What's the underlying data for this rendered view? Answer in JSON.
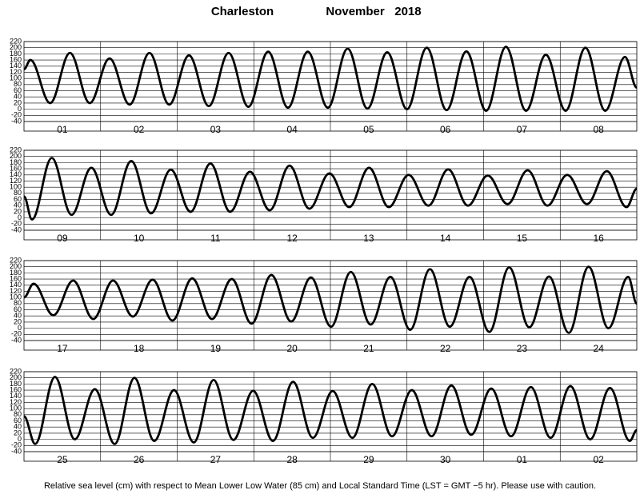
{
  "title": {
    "place": "Charleston",
    "month": "November   2018"
  },
  "footnote": "Relative sea level (cm) with respect to Mean Lower Low Water (85 cm) and Local Standard Time (LST = GMT −5 hr). Please use with caution.",
  "chart_data": [
    {
      "type": "line",
      "categories": [
        "01",
        "02",
        "03",
        "04",
        "05",
        "06",
        "07",
        "08"
      ],
      "xlim": [
        0,
        192
      ],
      "ylim": [
        -40,
        220
      ],
      "yticks": [
        -40,
        -20,
        0,
        20,
        40,
        60,
        80,
        100,
        120,
        140,
        160,
        180,
        200,
        220
      ],
      "grid": true,
      "x": [
        0,
        2.0,
        8.2,
        14.4,
        20.6,
        26.8,
        33.1,
        39.3,
        45.5,
        51.7,
        57.9,
        64.1,
        70.3,
        76.5,
        82.7,
        88.9,
        95.2,
        101.4,
        107.6,
        113.8,
        120.0,
        126.2,
        132.4,
        138.6,
        144.8,
        151.0,
        157.3,
        163.5,
        169.7,
        175.9,
        182.1,
        188.3,
        192
      ],
      "series": [
        {
          "color": "#000000",
          "values": [
            130,
            160,
            20,
            183,
            20,
            165,
            15,
            183,
            15,
            175,
            10,
            183,
            8,
            187,
            5,
            187,
            5,
            197,
            2,
            185,
            0,
            200,
            -3,
            188,
            -5,
            203,
            -5,
            177,
            -5,
            200,
            -5,
            170,
            70
          ]
        }
      ]
    },
    {
      "type": "line",
      "categories": [
        "09",
        "10",
        "11",
        "12",
        "13",
        "14",
        "15",
        "16"
      ],
      "xlim": [
        0,
        192
      ],
      "ylim": [
        -40,
        220
      ],
      "yticks": [
        -40,
        -20,
        0,
        20,
        40,
        60,
        80,
        100,
        120,
        140,
        160,
        180,
        200,
        220
      ],
      "grid": true,
      "x": [
        0,
        2.5,
        8.7,
        14.9,
        21.1,
        27.3,
        33.6,
        39.8,
        46.0,
        52.2,
        58.4,
        64.6,
        70.8,
        77.0,
        83.2,
        89.4,
        95.7,
        101.9,
        108.1,
        114.3,
        120.5,
        126.7,
        132.9,
        139.1,
        145.3,
        151.5,
        157.8,
        164.0,
        170.2,
        176.4,
        182.6,
        188.8,
        192
      ],
      "series": [
        {
          "color": "#000000",
          "values": [
            70,
            -5,
            195,
            10,
            163,
            10,
            185,
            15,
            157,
            20,
            177,
            20,
            150,
            25,
            170,
            30,
            145,
            35,
            163,
            35,
            140,
            40,
            158,
            40,
            138,
            45,
            155,
            40,
            140,
            45,
            152,
            35,
            95
          ]
        }
      ]
    },
    {
      "type": "line",
      "categories": [
        "17",
        "18",
        "19",
        "20",
        "21",
        "22",
        "23",
        "24"
      ],
      "xlim": [
        0,
        192
      ],
      "ylim": [
        -40,
        220
      ],
      "yticks": [
        -40,
        -20,
        0,
        20,
        40,
        60,
        80,
        100,
        120,
        140,
        160,
        180,
        200,
        220
      ],
      "grid": true,
      "x": [
        0,
        3.0,
        9.2,
        15.4,
        21.7,
        27.9,
        34.1,
        40.3,
        46.5,
        52.7,
        58.9,
        65.1,
        71.3,
        77.5,
        83.7,
        89.9,
        96.2,
        102.4,
        108.6,
        114.8,
        121.0,
        127.2,
        133.4,
        139.6,
        145.8,
        152.0,
        158.3,
        164.5,
        170.7,
        176.9,
        183.1,
        189.3,
        192
      ],
      "series": [
        {
          "color": "#000000",
          "values": [
            100,
            145,
            42,
            155,
            30,
            155,
            38,
            158,
            25,
            162,
            30,
            160,
            15,
            173,
            22,
            165,
            5,
            183,
            12,
            167,
            -5,
            192,
            5,
            167,
            -12,
            198,
            3,
            168,
            -15,
            200,
            0,
            167,
            80
          ]
        }
      ]
    },
    {
      "type": "line",
      "categories": [
        "25",
        "26",
        "27",
        "28",
        "29",
        "30",
        "01",
        "02"
      ],
      "xlim": [
        0,
        192
      ],
      "ylim": [
        -40,
        220
      ],
      "yticks": [
        -40,
        -20,
        0,
        20,
        40,
        60,
        80,
        100,
        120,
        140,
        160,
        180,
        200,
        220
      ],
      "grid": true,
      "x": [
        0,
        3.5,
        9.7,
        15.9,
        22.2,
        28.4,
        34.6,
        40.8,
        47.0,
        53.2,
        59.4,
        65.6,
        71.8,
        78.0,
        84.3,
        90.5,
        96.7,
        102.9,
        109.1,
        115.3,
        121.5,
        127.7,
        133.9,
        140.1,
        146.4,
        152.6,
        158.8,
        165.0,
        171.2,
        177.4,
        183.6,
        189.8,
        192
      ],
      "series": [
        {
          "color": "#000000",
          "values": [
            75,
            -15,
            203,
            0,
            163,
            -15,
            200,
            -5,
            160,
            -10,
            193,
            -2,
            158,
            -5,
            187,
            5,
            157,
            5,
            180,
            10,
            160,
            10,
            175,
            15,
            165,
            10,
            170,
            5,
            173,
            0,
            167,
            -5,
            30
          ]
        }
      ]
    }
  ]
}
